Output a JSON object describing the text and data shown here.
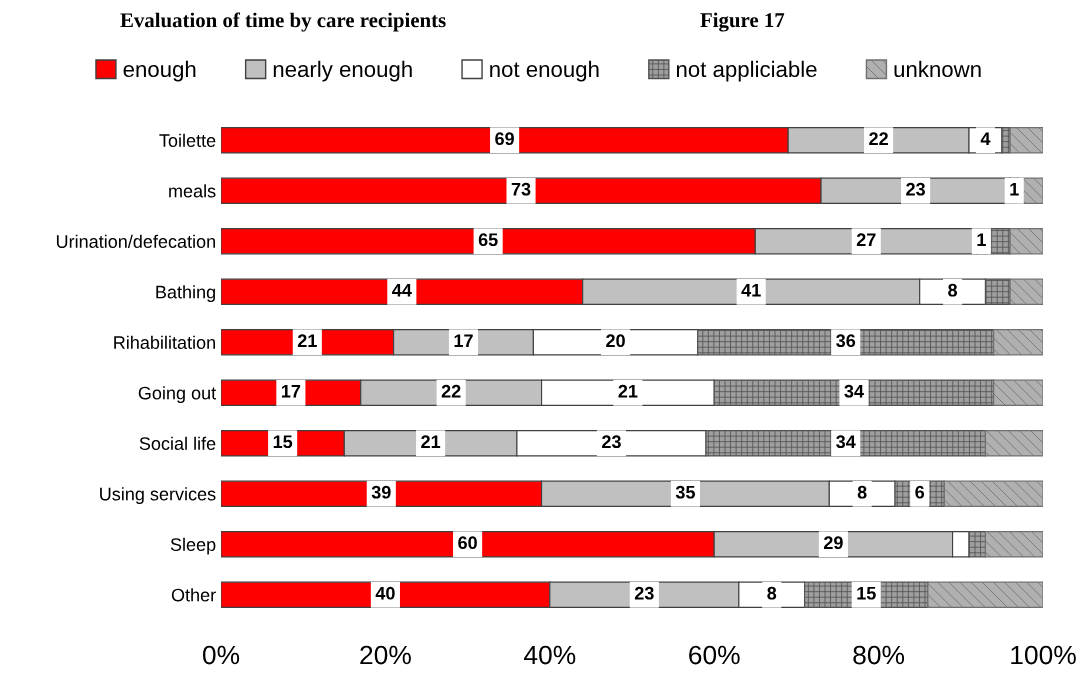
{
  "chart_data": {
    "type": "bar",
    "orientation": "horizontal",
    "stacked": true,
    "title": "Evaluation of time by care recipients",
    "annotations": [
      "Figure 17"
    ],
    "categories": [
      "Toilette",
      "meals",
      "Urination/defecation",
      "Bathing",
      "Rihabilitation",
      "Going out",
      "Social life",
      "Using services",
      "Sleep",
      "Other"
    ],
    "series": [
      {
        "name": "enough",
        "color": "#ff0000",
        "values": [
          69,
          73,
          65,
          44,
          21,
          17,
          15,
          39,
          60,
          40
        ],
        "value_labels": [
          "69",
          "73",
          "65",
          "44",
          "21",
          "17",
          "15",
          "39",
          "60",
          "40"
        ]
      },
      {
        "name": "nearly enough",
        "color": "#c0c0c0",
        "values": [
          22,
          23,
          27,
          41,
          17,
          22,
          21,
          35,
          29,
          23
        ],
        "value_labels": [
          "22",
          "23",
          "27",
          "41",
          "17",
          "22",
          "21",
          "35",
          "29",
          "23"
        ]
      },
      {
        "name": "not enough",
        "color": "#ffffff",
        "values": [
          4,
          1,
          1,
          8,
          20,
          21,
          23,
          8,
          2,
          8
        ],
        "value_labels": [
          "4",
          "1",
          "1",
          "8",
          "20",
          "21",
          "23",
          "8",
          null,
          "8"
        ]
      },
      {
        "name": "not appliciable",
        "color": "#505050",
        "values": [
          1,
          0,
          3,
          3,
          36,
          34,
          34,
          6,
          2,
          15
        ],
        "value_labels": [
          null,
          null,
          null,
          null,
          "36",
          "34",
          "34",
          "6",
          null,
          "15"
        ]
      },
      {
        "name": "unknown",
        "color": "#707070",
        "values": [
          4,
          3,
          4,
          4,
          6,
          6,
          7,
          12,
          7,
          14
        ],
        "value_labels": [
          null,
          null,
          null,
          null,
          null,
          null,
          null,
          null,
          null,
          null
        ]
      }
    ],
    "xlim": [
      0,
      100
    ],
    "xticks": [
      {
        "value": 0,
        "label": "0%"
      },
      {
        "value": 20,
        "label": "20%"
      },
      {
        "value": 40,
        "label": "40%"
      },
      {
        "value": 60,
        "label": "60%"
      },
      {
        "value": 80,
        "label": "80%"
      },
      {
        "value": 100,
        "label": "100%"
      }
    ],
    "legend": "top",
    "grid": false
  }
}
